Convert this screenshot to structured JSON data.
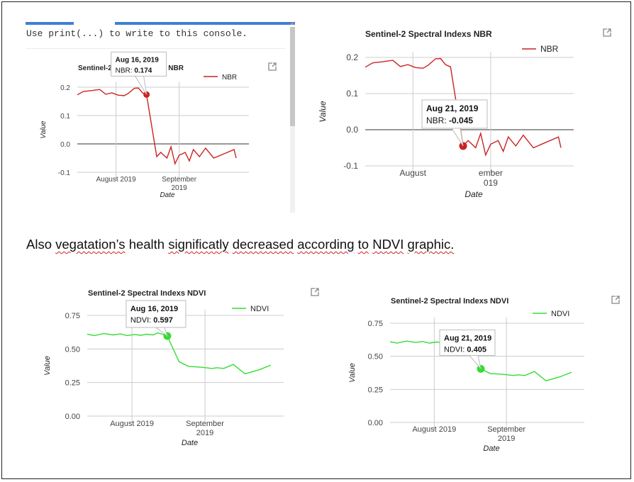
{
  "console": {
    "hint": "Use print(...) to write to this console."
  },
  "paragraph": {
    "text_parts": [
      "Also",
      "vegatation’s",
      "health",
      "significatly",
      "decreased",
      "according",
      "to",
      "NDVI",
      "graphic."
    ]
  },
  "icons": {
    "popout": "open-in-new-window-icon"
  },
  "colors": {
    "nbr": "#cc2222",
    "ndvi": "#33dd33",
    "tab_accent": "#3f7fd4",
    "spellcheck": "#d02020"
  },
  "charts": [
    {
      "title": "Sentinel-2 Spectral Indexs NBR",
      "legend": "NBR",
      "ylabel": "Value",
      "xlabel": "Date",
      "yticks": [
        "0.2",
        "0.1",
        "0.0",
        "-0.1"
      ],
      "xtick1": "August 2019",
      "xtick2a": "September",
      "xtick2b": "2019",
      "tooltip_date": "Aug 16, 2019",
      "tooltip_label": "NBR:",
      "tooltip_value": "0.174"
    },
    {
      "title": "Sentinel-2 Spectral Indexs NBR",
      "legend": "NBR",
      "ylabel": "Value",
      "xlabel": "Date",
      "yticks": [
        "0.2",
        "0.1",
        "0.0",
        "-0.1"
      ],
      "xtick1": "August",
      "xtick2a": "ember",
      "xtick2b": "019",
      "tooltip_date": "Aug 21, 2019",
      "tooltip_label": "NBR:",
      "tooltip_value": "-0.045"
    },
    {
      "title": "Sentinel-2 Spectral Indexs NDVI",
      "legend": "NDVI",
      "ylabel": "Value",
      "xlabel": "Date",
      "yticks": [
        "0.75",
        "0.50",
        "0.25",
        "0.00"
      ],
      "xtick1": "August 2019",
      "xtick2a": "September",
      "xtick2b": "2019",
      "tooltip_date": "Aug 16, 2019",
      "tooltip_label": "NDVI:",
      "tooltip_value": "0.597"
    },
    {
      "title": "Sentinel-2 Spectral Indexs NDVI",
      "legend": "NDVI",
      "ylabel": "Value",
      "xlabel": "Date",
      "yticks": [
        "0.75",
        "0.50",
        "0.25",
        "0.00"
      ],
      "xtick1": "August 2019",
      "xtick2a": "September",
      "xtick2b": "2019",
      "tooltip_date": "Aug 21, 2019",
      "tooltip_label": "NDVI:",
      "tooltip_value": "0.405"
    }
  ],
  "chart_data": [
    {
      "type": "line",
      "title": "Sentinel-2 Spectral Indexs NBR",
      "xlabel": "Date",
      "ylabel": "Value",
      "ylim": [
        -0.1,
        0.2
      ],
      "series": [
        {
          "name": "NBR",
          "x": [
            "2019-07-13",
            "2019-07-16",
            "2019-07-20",
            "2019-07-24",
            "2019-07-27",
            "2019-07-30",
            "2019-08-02",
            "2019-08-05",
            "2019-08-07",
            "2019-08-10",
            "2019-08-12",
            "2019-08-14",
            "2019-08-16",
            "2019-08-21",
            "2019-08-23",
            "2019-08-26",
            "2019-08-28",
            "2019-08-30",
            "2019-09-01",
            "2019-09-04",
            "2019-09-06",
            "2019-09-08",
            "2019-09-11",
            "2019-09-14",
            "2019-09-18",
            "2019-09-23",
            "2019-09-28",
            "2019-09-29"
          ],
          "values": [
            0.173,
            0.185,
            0.188,
            0.192,
            0.175,
            0.18,
            0.172,
            0.17,
            0.178,
            0.196,
            0.197,
            0.18,
            0.174,
            -0.045,
            -0.03,
            -0.05,
            -0.01,
            -0.07,
            -0.04,
            -0.03,
            -0.06,
            -0.02,
            -0.045,
            -0.015,
            -0.05,
            -0.035,
            -0.02,
            -0.05
          ]
        }
      ],
      "tooltip": {
        "date": "Aug 16, 2019",
        "series": "NBR",
        "value": 0.174
      }
    },
    {
      "type": "line",
      "title": "Sentinel-2 Spectral Indexs NBR",
      "xlabel": "Date",
      "ylabel": "Value",
      "ylim": [
        -0.1,
        0.2
      ],
      "series": [
        {
          "name": "NBR",
          "x": [
            "2019-07-13",
            "2019-07-16",
            "2019-07-20",
            "2019-07-24",
            "2019-07-27",
            "2019-07-30",
            "2019-08-02",
            "2019-08-05",
            "2019-08-07",
            "2019-08-10",
            "2019-08-12",
            "2019-08-14",
            "2019-08-16",
            "2019-08-21",
            "2019-08-23",
            "2019-08-26",
            "2019-08-28",
            "2019-08-30",
            "2019-09-01",
            "2019-09-04",
            "2019-09-06",
            "2019-09-08",
            "2019-09-11",
            "2019-09-14",
            "2019-09-18",
            "2019-09-23",
            "2019-09-28",
            "2019-09-29"
          ],
          "values": [
            0.173,
            0.185,
            0.188,
            0.192,
            0.175,
            0.18,
            0.172,
            0.17,
            0.178,
            0.196,
            0.197,
            0.18,
            0.174,
            -0.045,
            -0.03,
            -0.05,
            -0.01,
            -0.07,
            -0.04,
            -0.03,
            -0.06,
            -0.02,
            -0.045,
            -0.015,
            -0.05,
            -0.035,
            -0.02,
            -0.05
          ]
        }
      ],
      "tooltip": {
        "date": "Aug 21, 2019",
        "series": "NBR",
        "value": -0.045
      }
    },
    {
      "type": "line",
      "title": "Sentinel-2 Spectral Indexs NDVI",
      "xlabel": "Date",
      "ylabel": "Value",
      "ylim": [
        0.0,
        0.75
      ],
      "series": [
        {
          "name": "NDVI",
          "x": [
            "2019-07-13",
            "2019-07-16",
            "2019-07-20",
            "2019-07-24",
            "2019-07-27",
            "2019-07-30",
            "2019-08-02",
            "2019-08-05",
            "2019-08-07",
            "2019-08-10",
            "2019-08-12",
            "2019-08-14",
            "2019-08-16",
            "2019-08-21",
            "2019-08-25",
            "2019-08-30",
            "2019-09-04",
            "2019-09-06",
            "2019-09-09",
            "2019-09-13",
            "2019-09-18",
            "2019-09-24",
            "2019-09-29"
          ],
          "values": [
            0.61,
            0.6,
            0.615,
            0.605,
            0.612,
            0.6,
            0.608,
            0.602,
            0.61,
            0.605,
            0.62,
            0.61,
            0.597,
            0.405,
            0.37,
            0.365,
            0.355,
            0.36,
            0.355,
            0.385,
            0.315,
            0.345,
            0.38
          ]
        }
      ],
      "tooltip": {
        "date": "Aug 16, 2019",
        "series": "NDVI",
        "value": 0.597
      }
    },
    {
      "type": "line",
      "title": "Sentinel-2 Spectral Indexs NDVI",
      "xlabel": "Date",
      "ylabel": "Value",
      "ylim": [
        0.0,
        0.75
      ],
      "series": [
        {
          "name": "NDVI",
          "x": [
            "2019-07-13",
            "2019-07-16",
            "2019-07-20",
            "2019-07-24",
            "2019-07-27",
            "2019-07-30",
            "2019-08-02",
            "2019-08-05",
            "2019-08-07",
            "2019-08-10",
            "2019-08-12",
            "2019-08-14",
            "2019-08-16",
            "2019-08-21",
            "2019-08-25",
            "2019-08-30",
            "2019-09-04",
            "2019-09-06",
            "2019-09-09",
            "2019-09-13",
            "2019-09-18",
            "2019-09-24",
            "2019-09-29"
          ],
          "values": [
            0.61,
            0.6,
            0.615,
            0.605,
            0.612,
            0.6,
            0.608,
            0.602,
            0.61,
            0.605,
            0.62,
            0.61,
            0.597,
            0.405,
            0.37,
            0.365,
            0.355,
            0.36,
            0.355,
            0.385,
            0.315,
            0.345,
            0.38
          ]
        }
      ],
      "tooltip": {
        "date": "Aug 21, 2019",
        "series": "NDVI",
        "value": 0.405
      }
    }
  ]
}
